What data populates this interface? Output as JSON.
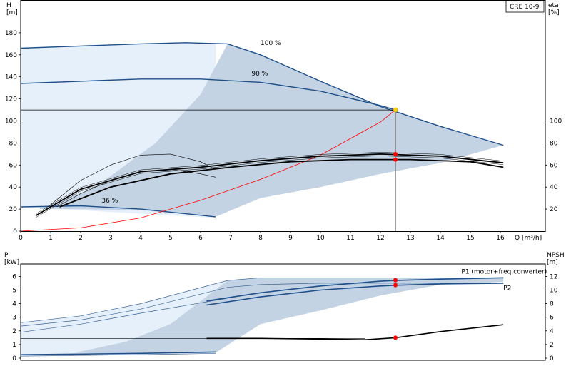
{
  "model_label": "CRE 10-9",
  "colors": {
    "light_band": "#e6f0fa",
    "dark_band": "#c3d3e3",
    "curve_main": "#1f4f8a",
    "curve_thin": "#3c6496",
    "system_curve": "#ff0000",
    "op_point": "#ff0000",
    "duty_point": "#ffcc00",
    "eta_curve": "#000000",
    "guide": "#777777"
  },
  "chart_data": [
    {
      "type": "line",
      "panel": "head-efficiency",
      "xlabel": "Q [m³/h]",
      "ylabel": "H\n[m]",
      "y2label": "eta\n[%]",
      "xlim": [
        0,
        17.5
      ],
      "ylim": [
        0,
        200
      ],
      "y2lim": [
        0,
        200
      ],
      "x_ticks": [
        0,
        1,
        2,
        3,
        4,
        5,
        6,
        7,
        8,
        9,
        10,
        11,
        12,
        13,
        14,
        15,
        16
      ],
      "y_ticks": [
        0,
        20,
        40,
        60,
        80,
        100,
        120,
        140,
        160,
        180
      ],
      "y2_ticks": [
        20,
        40,
        60,
        80,
        100
      ],
      "grid": false,
      "annotations": [
        {
          "text": "100 %",
          "x": 8.0,
          "y": 169
        },
        {
          "text": "90 %",
          "x": 7.7,
          "y": 141
        },
        {
          "text": "36 %",
          "x": 2.7,
          "y": 26
        }
      ],
      "series": [
        {
          "id": "light-band",
          "role": "area",
          "x": [
            0,
            1,
            2,
            3,
            4,
            5,
            6,
            6.5,
            6.5,
            0
          ],
          "y": [
            166,
            167,
            168,
            169,
            170,
            171,
            171,
            170,
            12,
            22
          ]
        },
        {
          "id": "dark-band",
          "role": "area",
          "x": [
            0.6,
            2.5,
            4.5,
            6,
            6.9,
            8,
            10,
            12,
            14,
            16.1,
            16.1,
            14,
            12,
            10,
            8,
            6.5,
            4,
            2,
            0.6
          ],
          "y": [
            20,
            40,
            80,
            124,
            170,
            160,
            136,
            113,
            95,
            78,
            78,
            62,
            52,
            40,
            30,
            13,
            19,
            20,
            20
          ]
        },
        {
          "id": "h-100",
          "role": "curve",
          "x": [
            0,
            2,
            4,
            5.5,
            6.9,
            8,
            10,
            12,
            14,
            16.1
          ],
          "y": [
            166,
            168,
            170,
            171,
            170,
            160,
            136,
            113,
            95,
            78
          ]
        },
        {
          "id": "h-90",
          "role": "curve",
          "x": [
            0,
            2,
            4,
            6,
            8,
            10,
            12,
            12.5
          ],
          "y": [
            134,
            136,
            138,
            138,
            135,
            127,
            114,
            110
          ]
        },
        {
          "id": "h-36",
          "role": "curve",
          "x": [
            0,
            2,
            4,
            6.5
          ],
          "y": [
            22,
            23,
            20,
            13
          ]
        },
        {
          "id": "system-curve",
          "role": "system",
          "x": [
            0,
            2,
            4,
            6,
            8,
            10,
            12,
            12.5
          ],
          "y": [
            0,
            3,
            12,
            28,
            47,
            69,
            99,
            110
          ]
        },
        {
          "id": "duty-line",
          "role": "guide",
          "x": [
            0,
            12.5
          ],
          "y": [
            110,
            110
          ]
        },
        {
          "id": "eta-1",
          "role": "eta",
          "x": [
            0.5,
            2,
            4,
            6,
            8,
            10,
            12,
            14,
            16.1
          ],
          "y": [
            14,
            38,
            54,
            58,
            64,
            68,
            70,
            68,
            62
          ]
        },
        {
          "id": "eta-2",
          "role": "eta",
          "x": [
            1.3,
            3,
            5,
            7,
            9,
            11,
            13,
            15,
            16.1
          ],
          "y": [
            22,
            40,
            52,
            58,
            63,
            65,
            65,
            63,
            58
          ]
        },
        {
          "id": "eta-3",
          "role": "eta-thin",
          "x": [
            1.0,
            2,
            3,
            4,
            5,
            6,
            6.5
          ],
          "y": [
            24,
            46,
            60,
            69,
            70,
            63,
            56
          ]
        },
        {
          "id": "eta-4",
          "role": "eta-thin",
          "x": [
            1.2,
            2,
            3,
            4,
            5,
            6,
            6.5
          ],
          "y": [
            22,
            34,
            46,
            54,
            56,
            52,
            49
          ]
        }
      ],
      "points": [
        {
          "id": "duty-point",
          "x": 12.5,
          "y": 110,
          "kind": "duty"
        },
        {
          "id": "eta-point-1",
          "x": 12.5,
          "y": 70,
          "kind": "op"
        },
        {
          "id": "eta-point-2",
          "x": 12.5,
          "y": 65,
          "kind": "op"
        }
      ]
    },
    {
      "type": "line",
      "panel": "power-npsh",
      "xlabel": "",
      "ylabel": "P\n[kW]",
      "y2label": "NPSH\n[m]",
      "xlim": [
        0,
        17.5
      ],
      "ylim": [
        0,
        7
      ],
      "y2lim": [
        0,
        14
      ],
      "y_ticks": [
        0,
        1,
        2,
        3,
        4,
        5,
        6
      ],
      "y2_ticks": [
        0,
        2,
        4,
        6,
        8,
        10,
        12
      ],
      "grid": false,
      "annotations": [
        {
          "text": "P1 (motor+freq.converter)",
          "x": 14.7,
          "y": 6.2
        },
        {
          "text": "P2",
          "x": 16.1,
          "y": 5.0
        }
      ],
      "series": [
        {
          "id": "p-light-band",
          "role": "area",
          "x": [
            0,
            2,
            4,
            6.9,
            8,
            10,
            12,
            14,
            16.1,
            16.1,
            14,
            12,
            10,
            8,
            6.5,
            4,
            2,
            0
          ],
          "y": [
            2.6,
            3.1,
            4.0,
            5.7,
            5.9,
            5.9,
            5.9,
            5.9,
            5.9,
            5.6,
            5.4,
            4.6,
            3.5,
            2.5,
            0.4,
            0.25,
            0.2,
            0.2
          ]
        },
        {
          "id": "p-dark-band",
          "role": "area",
          "x": [
            1.8,
            3.5,
            5,
            6.9,
            8,
            10,
            12,
            14,
            16.1,
            16.1,
            14,
            12,
            10,
            8,
            6.5,
            5,
            3,
            1.8
          ],
          "y": [
            0.4,
            1.2,
            2.5,
            5.7,
            5.9,
            5.9,
            5.9,
            5.9,
            5.9,
            5.6,
            5.4,
            4.6,
            3.5,
            2.5,
            0.4,
            0.35,
            0.3,
            0.4
          ]
        },
        {
          "id": "p1-100",
          "role": "curve-thin",
          "x": [
            0,
            2,
            4,
            6.9,
            8,
            10,
            12,
            14,
            16.1
          ],
          "y": [
            2.6,
            3.1,
            4.0,
            5.7,
            5.9,
            5.9,
            5.9,
            5.9,
            5.9
          ]
        },
        {
          "id": "p2-100",
          "role": "curve-thin",
          "x": [
            0,
            2,
            4,
            6.9,
            8,
            10,
            12,
            14,
            16.1
          ],
          "y": [
            2.35,
            2.8,
            3.6,
            5.2,
            5.4,
            5.5,
            5.5,
            5.5,
            5.5
          ]
        },
        {
          "id": "p-thin-3",
          "role": "curve-thin",
          "x": [
            0,
            2,
            4,
            6.9
          ],
          "y": [
            1.9,
            2.5,
            3.3,
            4.4
          ]
        },
        {
          "id": "p1-90",
          "role": "curve",
          "x": [
            6.2,
            8,
            10,
            12,
            12.5,
            14,
            16.1
          ],
          "y": [
            4.2,
            4.8,
            5.3,
            5.65,
            5.7,
            5.8,
            5.9
          ]
        },
        {
          "id": "p2-90",
          "role": "curve",
          "x": [
            6.2,
            8,
            10,
            12,
            12.5,
            14,
            16.1
          ],
          "y": [
            3.9,
            4.5,
            5.0,
            5.3,
            5.35,
            5.45,
            5.5
          ]
        },
        {
          "id": "p-36-a",
          "role": "curve",
          "x": [
            0,
            2,
            4,
            6.5
          ],
          "y": [
            0.25,
            0.3,
            0.35,
            0.45
          ]
        },
        {
          "id": "p-36-b",
          "role": "curve-thin",
          "x": [
            0,
            2,
            4,
            6.5
          ],
          "y": [
            0.15,
            0.2,
            0.25,
            0.35
          ]
        },
        {
          "id": "npsh-line",
          "role": "npsh",
          "x": [
            6.2,
            8,
            10,
            11.5,
            12.5,
            14,
            16.1
          ],
          "y2": [
            2.9,
            2.9,
            2.8,
            2.7,
            3.0,
            3.9,
            4.9
          ]
        },
        {
          "id": "npsh-ref",
          "role": "guide-h",
          "x": [
            0,
            11.5
          ],
          "y2": [
            2.9,
            2.9
          ]
        },
        {
          "id": "npsh-ref-2",
          "role": "guide-h",
          "x": [
            0,
            11.5
          ],
          "y2": [
            3.4,
            3.4
          ]
        }
      ],
      "points": [
        {
          "id": "p1-point",
          "x": 12.5,
          "y": 5.72,
          "kind": "op"
        },
        {
          "id": "p2-point",
          "x": 12.5,
          "y": 5.36,
          "kind": "op"
        },
        {
          "id": "npsh-point",
          "x": 12.5,
          "y2": 3.0,
          "kind": "op"
        }
      ]
    }
  ]
}
